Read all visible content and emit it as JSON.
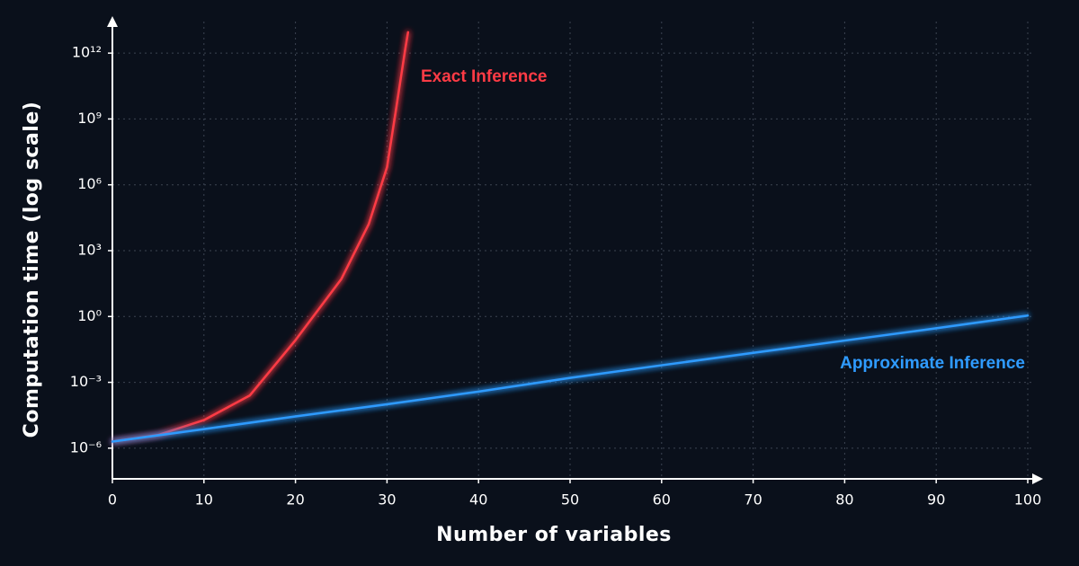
{
  "chart_data": {
    "type": "line",
    "xlabel": "Number of variables",
    "ylabel": "Computation time (log scale)",
    "log_y": true,
    "grid": true,
    "xlim": [
      0,
      100
    ],
    "xticks": [
      0,
      10,
      20,
      30,
      40,
      50,
      60,
      70,
      80,
      90,
      100
    ],
    "ylim": [
      4e-08,
      40000000000000.0
    ],
    "yticks": [
      {
        "value": 1e-06,
        "label": "10⁻⁶"
      },
      {
        "value": 0.001,
        "label": "10⁻³"
      },
      {
        "value": 1,
        "label": "10⁰"
      },
      {
        "value": 1000.0,
        "label": "10³"
      },
      {
        "value": 1000000.0,
        "label": "10⁶"
      },
      {
        "value": 1000000000.0,
        "label": "10⁹"
      },
      {
        "value": 1000000000000.0,
        "label": "10¹²"
      }
    ],
    "series": [
      {
        "name": "Exact Inference",
        "color": "#ff3b45",
        "x": [
          0,
          5,
          10,
          15,
          20,
          25,
          28,
          30,
          31,
          32,
          32.3
        ],
        "values": [
          2e-06,
          4e-06,
          1.9e-05,
          0.00025,
          0.083,
          50,
          16000,
          6300000,
          3000000000,
          1600000000000,
          9000000000000
        ]
      },
      {
        "name": "Approximate Inference",
        "color": "#2f9bff",
        "x": [
          0,
          10,
          20,
          30,
          40,
          50,
          60,
          70,
          80,
          90,
          100
        ],
        "values": [
          2e-06,
          7.4e-06,
          2.8e-05,
          0.0001,
          0.00038,
          0.0016,
          0.006,
          0.022,
          0.08,
          0.29,
          1.1
        ]
      }
    ]
  }
}
